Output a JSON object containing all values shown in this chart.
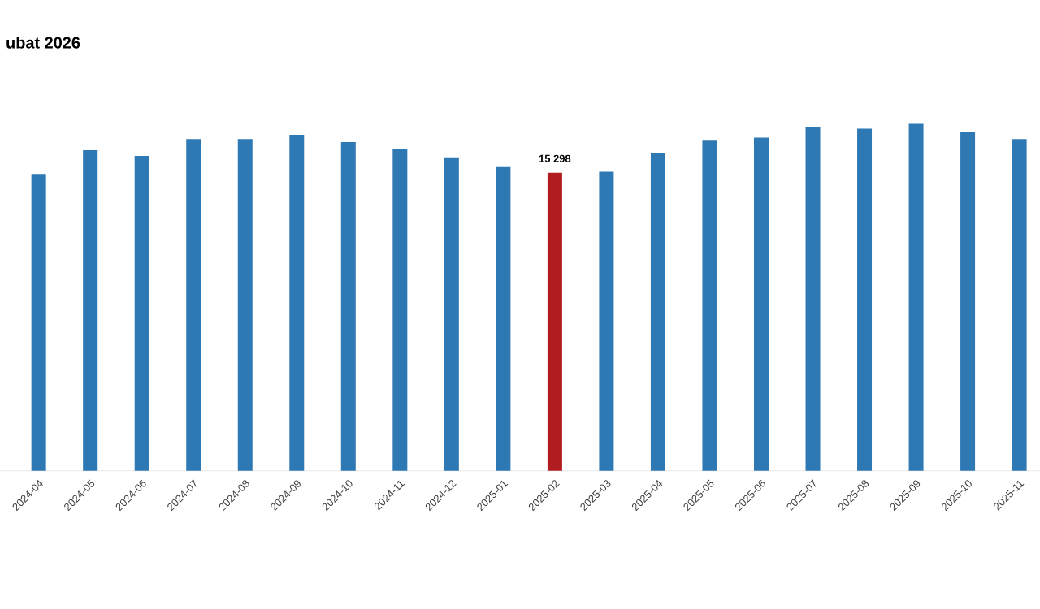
{
  "chart_data": {
    "type": "bar",
    "title": "ubat 2026",
    "categories": [
      "2024-04",
      "2024-05",
      "2024-06",
      "2024-07",
      "2024-08",
      "2024-09",
      "2024-10",
      "2024-11",
      "2024-12",
      "2025-01",
      "2025-02",
      "2025-03",
      "2025-04",
      "2025-05",
      "2025-06",
      "2025-07",
      "2025-08",
      "2025-09",
      "2025-10",
      "2025-11"
    ],
    "values": [
      15240,
      16460,
      16170,
      17030,
      17030,
      17250,
      16880,
      16540,
      16090,
      15590,
      15298,
      15350,
      16320,
      16950,
      17110,
      17640,
      17560,
      17820,
      17400,
      17030
    ],
    "colors": [
      "#2e78b4",
      "#2e78b4",
      "#2e78b4",
      "#2e78b4",
      "#2e78b4",
      "#2e78b4",
      "#2e78b4",
      "#2e78b4",
      "#2e78b4",
      "#2e78b4",
      "#b01c20",
      "#2e78b4",
      "#2e78b4",
      "#2e78b4",
      "#2e78b4",
      "#2e78b4",
      "#2e78b4",
      "#2e78b4",
      "#2e78b4",
      "#2e78b4"
    ],
    "value_labels": [
      null,
      null,
      null,
      null,
      null,
      null,
      null,
      null,
      null,
      null,
      "15 298",
      null,
      null,
      null,
      null,
      null,
      null,
      null,
      null,
      null
    ]
  }
}
